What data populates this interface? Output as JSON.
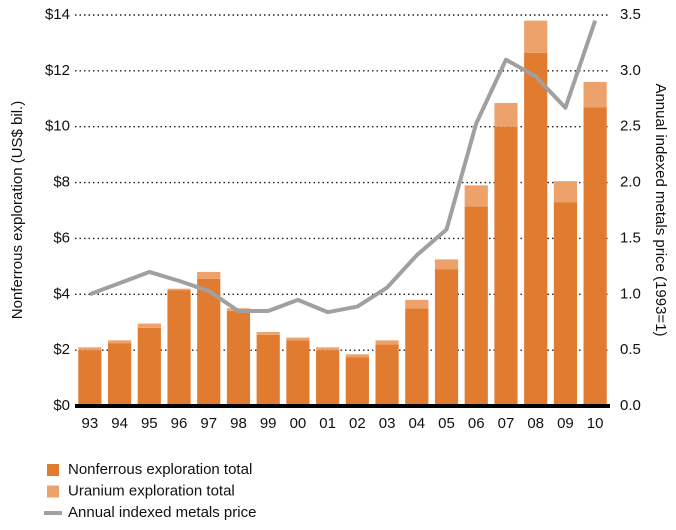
{
  "chart_data": {
    "type": "bar",
    "stacked": true,
    "y_label": "Nonferrous exploration (US$ bil.)",
    "y2_label": "Annual indexed metals price (1993=1)",
    "categories": [
      "93",
      "94",
      "95",
      "96",
      "97",
      "98",
      "99",
      "00",
      "01",
      "02",
      "03",
      "04",
      "05",
      "06",
      "07",
      "08",
      "09",
      "10"
    ],
    "series": [
      {
        "name": "Nonferrous exploration total",
        "color": "#e07b2f",
        "values": [
          2.0,
          2.25,
          2.8,
          4.15,
          4.55,
          3.4,
          2.55,
          2.35,
          2.0,
          1.75,
          2.2,
          3.5,
          4.9,
          7.15,
          10.0,
          12.65,
          7.3,
          10.7
        ]
      },
      {
        "name": "Uranium exploration total",
        "color": "#eda26b",
        "values": [
          0.1,
          0.1,
          0.15,
          0.05,
          0.25,
          0.1,
          0.1,
          0.1,
          0.1,
          0.1,
          0.15,
          0.3,
          0.35,
          0.75,
          0.85,
          1.15,
          0.75,
          0.9
        ]
      },
      {
        "name": "Annual indexed metals price",
        "color": "#a0a0a0",
        "type": "line",
        "axis": "y2",
        "values": [
          1.0,
          1.1,
          1.2,
          1.12,
          1.03,
          0.85,
          0.85,
          0.95,
          0.84,
          0.89,
          1.06,
          1.35,
          1.58,
          2.53,
          3.1,
          2.95,
          2.67,
          3.45
        ]
      }
    ],
    "ylim": [
      0,
      14
    ],
    "yticks": [
      {
        "value": 0,
        "label": "$0"
      },
      {
        "value": 2,
        "label": "$2"
      },
      {
        "value": 4,
        "label": "$4"
      },
      {
        "value": 6,
        "label": "$6"
      },
      {
        "value": 8,
        "label": "$8"
      },
      {
        "value": 10,
        "label": "$10"
      },
      {
        "value": 12,
        "label": "$12"
      },
      {
        "value": 14,
        "label": "$14"
      }
    ],
    "y2lim": [
      0,
      3.5
    ],
    "y2ticks": [
      {
        "value": 0,
        "label": "0.0"
      },
      0.5,
      {
        "value": 1,
        "label": "1.0"
      },
      1.5,
      {
        "value": 2,
        "label": "2.0"
      },
      2.5,
      {
        "value": 3,
        "label": "3.0"
      },
      3.5
    ],
    "grid": true,
    "legend": "bottom-left"
  }
}
